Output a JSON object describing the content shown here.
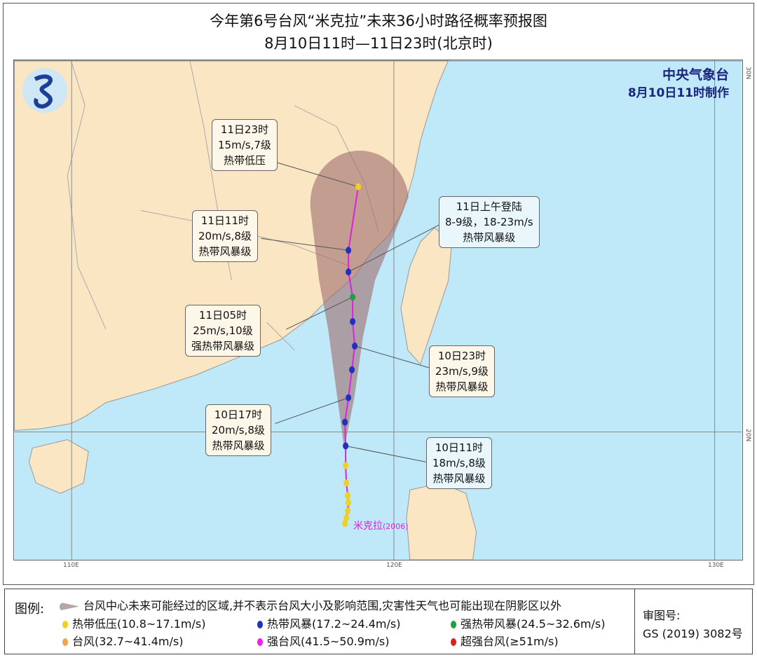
{
  "title": "今年第6号台风“米克拉”未来36小时路径概率预报图",
  "subtitle": "8月10日11时—11日23时(北京时)",
  "agency": {
    "name": "中央气象台",
    "made": "8月10日11时制作"
  },
  "grid": {
    "lat": [
      "30N",
      "20N"
    ],
    "lon": [
      "110E",
      "120E",
      "130E"
    ]
  },
  "typhoon_label": "米克拉",
  "typhoon_code": "(2006)",
  "colors": {
    "sea": "#bfe8f8",
    "land": "#fbe6c4",
    "cone": "#9e6d6d",
    "track": "#e020e0",
    "td": "#f0d020",
    "ts": "#2030c0",
    "sts": "#20a040"
  },
  "annotations": [
    {
      "time": "11日23时",
      "wind": "15m/s,7级",
      "level": "热带低压"
    },
    {
      "time": "11日11时",
      "wind": "20m/s,8级",
      "level": "热带风暴级"
    },
    {
      "time": "11日上午登陆",
      "wind": "8-9级，18-23m/s",
      "level": "热带风暴级"
    },
    {
      "time": "11日05时",
      "wind": "25m/s,10级",
      "level": "强热带风暴级"
    },
    {
      "time": "10日23时",
      "wind": "23m/s,9级",
      "level": "热带风暴级"
    },
    {
      "time": "10日17时",
      "wind": "20m/s,8级",
      "level": "热带风暴级"
    },
    {
      "time": "10日11时",
      "wind": "18m/s,8级",
      "level": "热带风暴级"
    }
  ],
  "legend": {
    "title": "图例:",
    "cone": "台风中心未来可能经过的区域,并不表示台风大小及影响范围,灾害性天气也可能出现在阴影区以外",
    "items": [
      {
        "label": "热带低压(10.8~17.1m/s)",
        "color": "#f0d020"
      },
      {
        "label": "热带风暴(17.2~24.4m/s)",
        "color": "#2030c0"
      },
      {
        "label": "强热带风暴(24.5~32.6m/s)",
        "color": "#20a040"
      },
      {
        "label": "台风(32.7~41.4m/s)",
        "color": "#f7a050"
      },
      {
        "label": "强台风(41.5~50.9m/s)",
        "color": "#f020f0"
      },
      {
        "label": "超强台风(≥51m/s)",
        "color": "#e02020"
      }
    ],
    "review_label": "审图号:",
    "review_no": "GS (2019) 3082号"
  }
}
